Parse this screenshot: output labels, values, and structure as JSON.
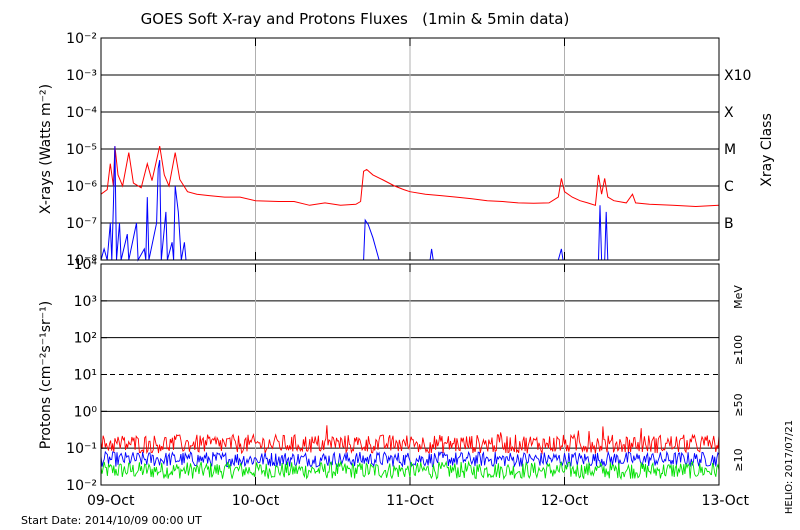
{
  "title": "GOES Soft X-ray and Protons Fluxes   (1min & 5min data)",
  "footer": {
    "start_date": "Start Date: 2014/10/09 00:00 UT",
    "credit": "HELIO: 2017/07/21"
  },
  "x_ticks": [
    "09-Oct",
    "10-Oct",
    "11-Oct",
    "12-Oct",
    "13-Oct"
  ],
  "colors": {
    "xray_long": "#ff0000",
    "xray_short": "#0000ff",
    "p10": "#ff0000",
    "p50": "#0000ff",
    "p100": "#00e000",
    "day_grid": "#b0b0b0"
  },
  "chart_data": [
    {
      "type": "line",
      "title": "X-rays",
      "ylabel": "X-rays (Watts m⁻²)",
      "yscale": "log",
      "ylim": [
        1e-08,
        0.01
      ],
      "y_ticks": [
        "10⁻²",
        "10⁻³",
        "10⁻⁴",
        "10⁻⁵",
        "10⁻⁶",
        "10⁻⁷",
        "10⁻⁸"
      ],
      "xlim_days": [
        0,
        4
      ],
      "right_axis_label": "Xray Class",
      "right_classes": [
        {
          "label": "X10",
          "value": 0.001
        },
        {
          "label": "X",
          "value": 0.0001
        },
        {
          "label": "M",
          "value": 1e-05
        },
        {
          "label": "C",
          "value": 1e-06
        },
        {
          "label": "B",
          "value": 1e-07
        }
      ],
      "series": [
        {
          "color_key": "xray_long",
          "points": [
            [
              0.0,
              6e-07
            ],
            [
              0.04,
              8e-07
            ],
            [
              0.06,
              4e-06
            ],
            [
              0.08,
              1e-06
            ],
            [
              0.09,
              1.2e-05
            ],
            [
              0.11,
              2e-06
            ],
            [
              0.14,
              1e-06
            ],
            [
              0.18,
              8e-06
            ],
            [
              0.21,
              1.2e-06
            ],
            [
              0.26,
              9e-07
            ],
            [
              0.3,
              4e-06
            ],
            [
              0.33,
              1.4e-06
            ],
            [
              0.38,
              1.2e-05
            ],
            [
              0.41,
              2e-06
            ],
            [
              0.44,
              1e-06
            ],
            [
              0.48,
              8e-06
            ],
            [
              0.51,
              1.5e-06
            ],
            [
              0.56,
              7e-07
            ],
            [
              0.62,
              6e-07
            ],
            [
              0.7,
              5.5e-07
            ],
            [
              0.8,
              5e-07
            ],
            [
              0.9,
              5e-07
            ],
            [
              1.0,
              4e-07
            ],
            [
              1.15,
              3.8e-07
            ],
            [
              1.25,
              3.8e-07
            ],
            [
              1.35,
              3e-07
            ],
            [
              1.45,
              3.5e-07
            ],
            [
              1.55,
              3e-07
            ],
            [
              1.65,
              3.2e-07
            ],
            [
              1.68,
              3.8e-07
            ],
            [
              1.7,
              2.5e-06
            ],
            [
              1.72,
              2.8e-06
            ],
            [
              1.76,
              2e-06
            ],
            [
              1.82,
              1.5e-06
            ],
            [
              1.9,
              1e-06
            ],
            [
              1.96,
              8e-07
            ],
            [
              2.0,
              7e-07
            ],
            [
              2.1,
              6e-07
            ],
            [
              2.2,
              5.5e-07
            ],
            [
              2.3,
              5e-07
            ],
            [
              2.4,
              4.5e-07
            ],
            [
              2.5,
              4e-07
            ],
            [
              2.6,
              3.8e-07
            ],
            [
              2.7,
              3.5e-07
            ],
            [
              2.8,
              3.4e-07
            ],
            [
              2.9,
              3.5e-07
            ],
            [
              2.96,
              5e-07
            ],
            [
              2.98,
              1.6e-06
            ],
            [
              3.0,
              7e-07
            ],
            [
              3.05,
              5e-07
            ],
            [
              3.1,
              4e-07
            ],
            [
              3.15,
              3.5e-07
            ],
            [
              3.2,
              3e-07
            ],
            [
              3.22,
              2e-06
            ],
            [
              3.24,
              6e-07
            ],
            [
              3.26,
              1.6e-06
            ],
            [
              3.28,
              5e-07
            ],
            [
              3.32,
              4e-07
            ],
            [
              3.4,
              3.5e-07
            ],
            [
              3.44,
              6e-07
            ],
            [
              3.46,
              3.5e-07
            ],
            [
              3.55,
              3.2e-07
            ],
            [
              3.7,
              3e-07
            ],
            [
              3.85,
              2.8e-07
            ],
            [
              4.0,
              3e-07
            ]
          ]
        },
        {
          "color_key": "xray_short",
          "points": [
            [
              0.0,
              1e-08
            ],
            [
              0.02,
              2e-08
            ],
            [
              0.04,
              1e-08
            ],
            [
              0.06,
              1e-07
            ],
            [
              0.07,
              1e-08
            ],
            [
              0.08,
              3e-07
            ],
            [
              0.09,
              1.2e-05
            ],
            [
              0.1,
              1e-08
            ],
            [
              0.12,
              1e-07
            ],
            [
              0.13,
              1e-08
            ],
            [
              0.17,
              5e-08
            ],
            [
              0.18,
              1e-08
            ],
            [
              0.23,
              1e-07
            ],
            [
              0.24,
              1e-08
            ],
            [
              0.28,
              2e-08
            ],
            [
              0.29,
              1e-08
            ],
            [
              0.3,
              5e-07
            ],
            [
              0.31,
              1e-08
            ],
            [
              0.36,
              1e-07
            ],
            [
              0.37,
              3e-06
            ],
            [
              0.38,
              5e-06
            ],
            [
              0.39,
              1e-08
            ],
            [
              0.42,
              2e-07
            ],
            [
              0.43,
              1e-08
            ],
            [
              0.46,
              3e-08
            ],
            [
              0.47,
              1e-08
            ],
            [
              0.48,
              1e-06
            ],
            [
              0.5,
              2e-07
            ],
            [
              0.52,
              1e-08
            ],
            [
              0.54,
              3e-08
            ],
            [
              0.55,
              1e-08
            ],
            [
              0.6,
              1e-08
            ],
            [
              1.7,
              1e-08
            ],
            [
              1.71,
              1.2e-07
            ],
            [
              1.73,
              9e-08
            ],
            [
              1.76,
              4e-08
            ],
            [
              1.78,
              2e-08
            ],
            [
              1.8,
              1e-08
            ],
            [
              2.13,
              1e-08
            ],
            [
              2.14,
              2e-08
            ],
            [
              2.15,
              1e-08
            ],
            [
              2.96,
              1e-08
            ],
            [
              2.98,
              2e-08
            ],
            [
              2.99,
              1e-08
            ],
            [
              3.22,
              1e-08
            ],
            [
              3.23,
              3e-07
            ],
            [
              3.24,
              1e-08
            ],
            [
              3.26,
              1e-08
            ],
            [
              3.27,
              2e-07
            ],
            [
              3.28,
              1e-08
            ]
          ]
        }
      ]
    },
    {
      "type": "line",
      "title": "Protons",
      "ylabel": "Protons (cm⁻²s⁻¹sr⁻¹)",
      "yscale": "log",
      "ylim": [
        0.01,
        10000
      ],
      "y_ticks": [
        "10⁴",
        "10³",
        "10²",
        "10¹",
        "10⁰",
        "10⁻¹",
        "10⁻²"
      ],
      "xlim_days": [
        0,
        4
      ],
      "unit_label": "MeV",
      "threshold_line": 10,
      "series": [
        {
          "name": "≥10",
          "color_key": "p10",
          "base": 0.13,
          "spread": 1.8
        },
        {
          "name": "≥50",
          "color_key": "p50",
          "base": 0.05,
          "spread": 1.6
        },
        {
          "name": "≥100",
          "color_key": "p100",
          "base": 0.025,
          "spread": 1.7
        }
      ]
    }
  ]
}
